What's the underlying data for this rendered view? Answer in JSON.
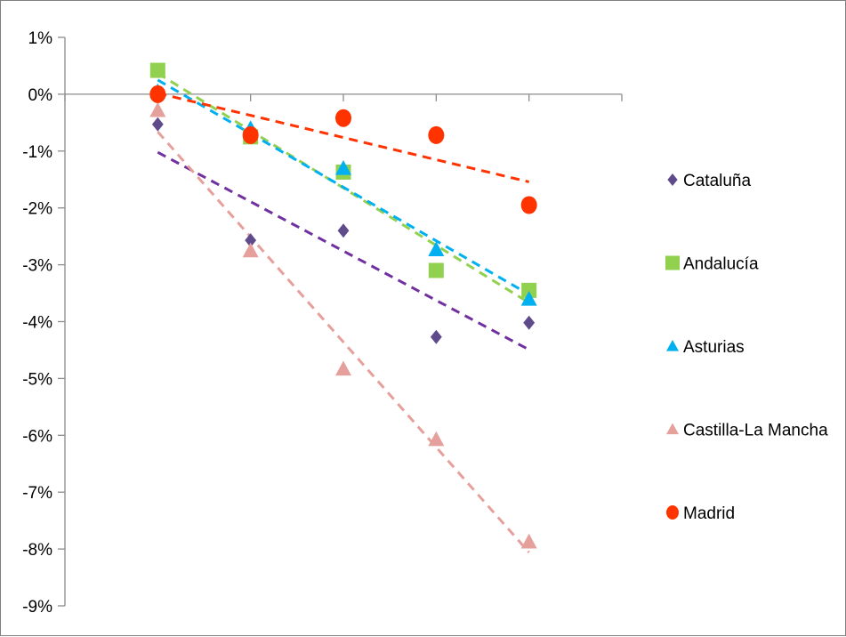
{
  "chart_data": {
    "type": "scatter",
    "title": "",
    "xlabel": "",
    "ylabel": "",
    "x": [
      1,
      2,
      3,
      4,
      5
    ],
    "xlim": [
      0,
      6
    ],
    "ylim": [
      -9,
      1
    ],
    "y_ticks": [
      1,
      0,
      -1,
      -2,
      -3,
      -4,
      -5,
      -6,
      -7,
      -8,
      -9
    ],
    "y_tick_labels": [
      "1%",
      "0%",
      "-1%",
      "-2%",
      "-3%",
      "-4%",
      "-5%",
      "-6%",
      "-7%",
      "-8%",
      "-9%"
    ],
    "grid": false,
    "trendlines": "linear, dashed",
    "legend_position": "right",
    "series": [
      {
        "name": "Cataluña",
        "marker": "diamond",
        "color": "#5f4b8b",
        "trend_color": "#7030a0",
        "values": [
          -0.53,
          -2.57,
          -2.4,
          -4.27,
          -4.02
        ]
      },
      {
        "name": "Andalucía",
        "marker": "square",
        "color": "#92d050",
        "trend_color": "#92d050",
        "values": [
          0.42,
          -0.75,
          -1.37,
          -3.1,
          -3.45
        ]
      },
      {
        "name": "Asturias",
        "marker": "triangle",
        "color": "#00b0f0",
        "trend_color": "#00b0f0",
        "values": [
          0.05,
          -0.6,
          -1.3,
          -2.73,
          -3.6
        ]
      },
      {
        "name": "Castilla-La Mancha",
        "marker": "triangle",
        "color": "#e6a09c",
        "trend_color": "#e6a09c",
        "values": [
          -0.28,
          -2.75,
          -4.83,
          -6.07,
          -7.87
        ]
      },
      {
        "name": "Madrid",
        "marker": "circle",
        "color": "#ff3300",
        "trend_color": "#ff3300",
        "values": [
          0.0,
          -0.72,
          -0.42,
          -0.72,
          -1.95
        ]
      }
    ]
  }
}
